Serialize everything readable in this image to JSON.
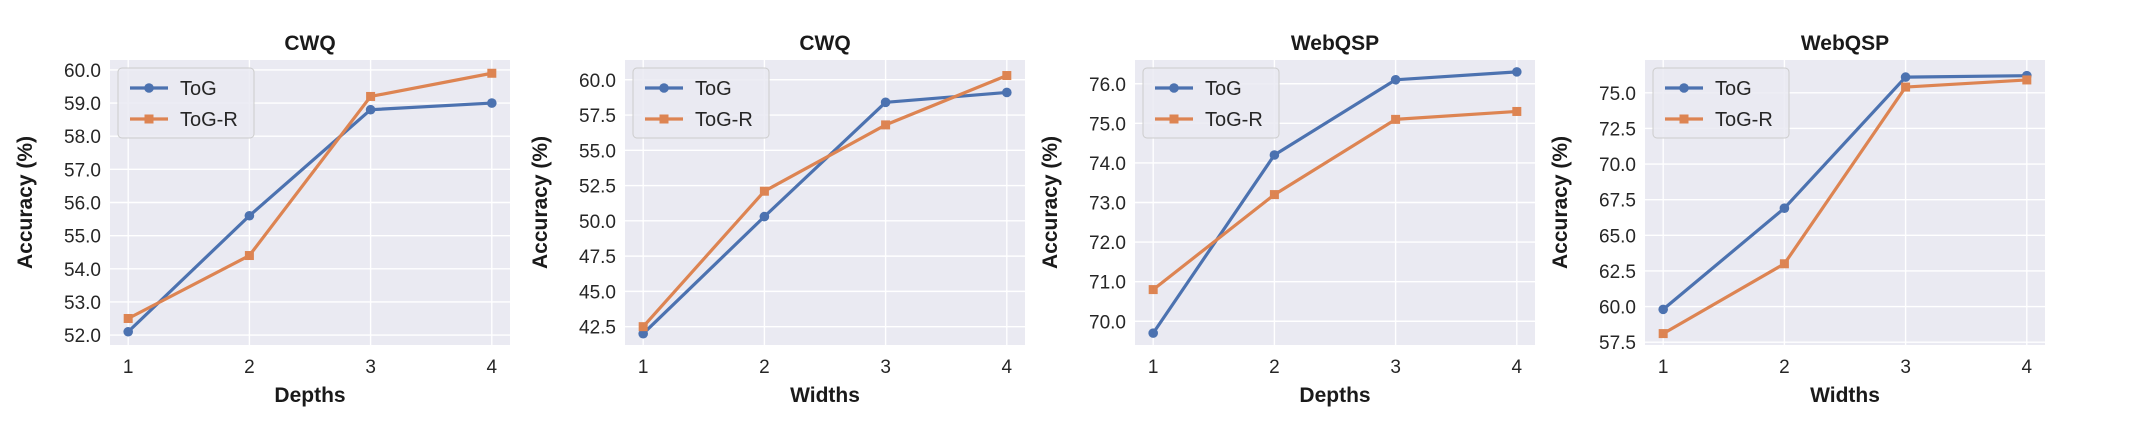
{
  "chart_data": [
    {
      "type": "line",
      "title": "CWQ",
      "xlabel": "Depths",
      "ylabel": "Accuracy (%)",
      "x": [
        1,
        2,
        3,
        4
      ],
      "xlim": [
        0.85,
        4.15
      ],
      "ylim": [
        51.7,
        60.3
      ],
      "yticks": [
        52.0,
        53.0,
        54.0,
        55.0,
        56.0,
        57.0,
        58.0,
        59.0,
        60.0
      ],
      "grid": true,
      "legend": "upper left",
      "series": [
        {
          "name": "ToG",
          "color": "#4c72b0",
          "marker": "circle",
          "values": [
            52.1,
            55.6,
            58.8,
            59.0
          ]
        },
        {
          "name": "ToG-R",
          "color": "#dd8452",
          "marker": "square",
          "values": [
            52.5,
            54.4,
            59.2,
            59.9
          ]
        }
      ]
    },
    {
      "type": "line",
      "title": "CWQ",
      "xlabel": "Widths",
      "ylabel": "Accuracy (%)",
      "x": [
        1,
        2,
        3,
        4
      ],
      "xlim": [
        0.85,
        4.15
      ],
      "ylim": [
        41.2,
        61.4
      ],
      "yticks": [
        42.5,
        45.0,
        47.5,
        50.0,
        52.5,
        55.0,
        57.5,
        60.0
      ],
      "grid": true,
      "legend": "upper left",
      "series": [
        {
          "name": "ToG",
          "color": "#4c72b0",
          "marker": "circle",
          "values": [
            42.0,
            50.3,
            58.4,
            59.1
          ]
        },
        {
          "name": "ToG-R",
          "color": "#dd8452",
          "marker": "square",
          "values": [
            42.5,
            52.1,
            56.8,
            60.3
          ]
        }
      ]
    },
    {
      "type": "line",
      "title": "WebQSP",
      "xlabel": "Depths",
      "ylabel": "Accuracy (%)",
      "x": [
        1,
        2,
        3,
        4
      ],
      "xlim": [
        0.85,
        4.15
      ],
      "ylim": [
        69.4,
        76.6
      ],
      "yticks": [
        70.0,
        71.0,
        72.0,
        73.0,
        74.0,
        75.0,
        76.0
      ],
      "grid": true,
      "legend": "upper left",
      "series": [
        {
          "name": "ToG",
          "color": "#4c72b0",
          "marker": "circle",
          "values": [
            69.7,
            74.2,
            76.1,
            76.3
          ]
        },
        {
          "name": "ToG-R",
          "color": "#dd8452",
          "marker": "square",
          "values": [
            70.8,
            73.2,
            75.1,
            75.3
          ]
        }
      ]
    },
    {
      "type": "line",
      "title": "WebQSP",
      "xlabel": "Widths",
      "ylabel": "Accuracy (%)",
      "x": [
        1,
        2,
        3,
        4
      ],
      "xlim": [
        0.85,
        4.15
      ],
      "ylim": [
        57.3,
        77.3
      ],
      "yticks": [
        57.5,
        60.0,
        62.5,
        65.0,
        67.5,
        70.0,
        72.5,
        75.0
      ],
      "grid": true,
      "legend": "upper left",
      "series": [
        {
          "name": "ToG",
          "color": "#4c72b0",
          "marker": "circle",
          "values": [
            59.8,
            66.9,
            76.1,
            76.2
          ]
        },
        {
          "name": "ToG-R",
          "color": "#dd8452",
          "marker": "square",
          "values": [
            58.1,
            63.0,
            75.4,
            75.9
          ]
        }
      ]
    }
  ]
}
